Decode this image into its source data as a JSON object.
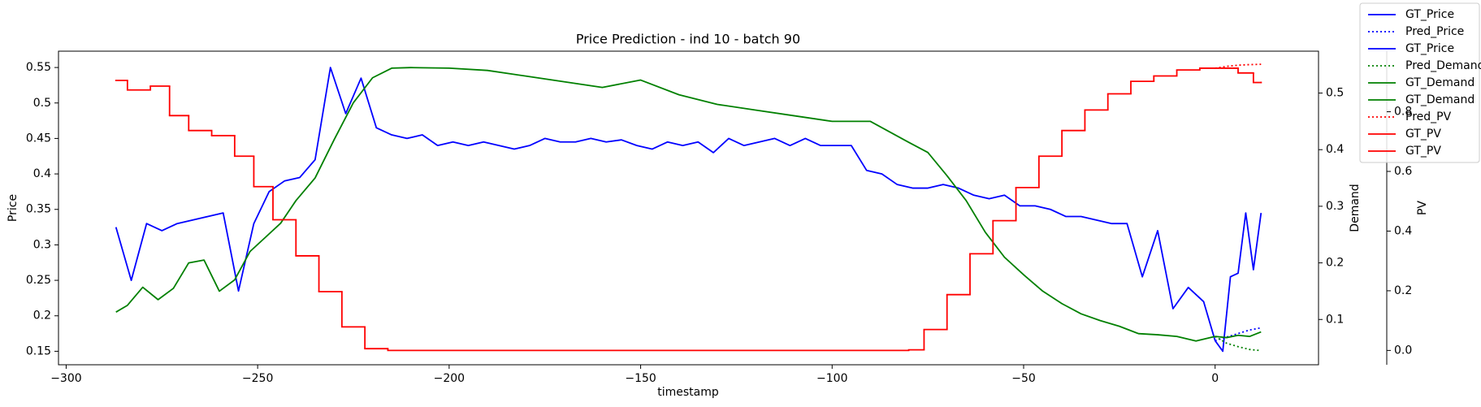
{
  "chart_data": {
    "type": "line",
    "title": "Price Prediction - ind 10 - batch 90",
    "xlabel": "timestamp",
    "ylabel": "Price",
    "y2label": "Demand",
    "y3label": "PV",
    "ylabel_color": "#0000ff",
    "y2label_color": "#008000",
    "y3label_color": "#ff0000",
    "xlim": [
      -302,
      27
    ],
    "xticks": [
      {
        "value": -300,
        "label": "−300"
      },
      {
        "value": -250,
        "label": "−250"
      },
      {
        "value": -200,
        "label": "−200"
      },
      {
        "value": -150,
        "label": "−150"
      },
      {
        "value": -100,
        "label": "−100"
      },
      {
        "value": -50,
        "label": "−50"
      },
      0
    ],
    "ylim": [
      0.131,
      0.573
    ],
    "yticks": [
      0.15,
      0.2,
      0.25,
      0.3,
      0.35,
      0.4,
      0.45,
      0.5,
      0.55
    ],
    "y2lim": [
      0.02,
      0.574
    ],
    "y2ticks": [
      0.1,
      0.2,
      0.3,
      0.4,
      0.5
    ],
    "y3lim": [
      -0.048,
      1.003
    ],
    "y3ticks": [
      {
        "value": 0,
        "label": "0.0"
      },
      0.2,
      0.4,
      0.6,
      0.8
    ],
    "legend": "upper right outside",
    "series": [
      {
        "name": "GT_Price",
        "color": "#0000ff",
        "style": "solid",
        "axis": "y",
        "x": [
          -287,
          -283,
          -279,
          -275,
          -271,
          -267,
          -263,
          -259,
          -255,
          -251,
          -247,
          -243,
          -239,
          -235,
          -231,
          -227,
          -223,
          -219,
          -215,
          -211,
          -207,
          -203,
          -199,
          -195,
          -191,
          -187,
          -183,
          -179,
          -175,
          -171,
          -167,
          -163,
          -159,
          -155,
          -151,
          -147,
          -143,
          -139,
          -135,
          -131,
          -127,
          -123,
          -119,
          -115,
          -111,
          -107,
          -103,
          -99,
          -95,
          -91,
          -87,
          -83,
          -79,
          -75,
          -71,
          -67,
          -63,
          -59,
          -55,
          -51,
          -47,
          -43,
          -39,
          -35,
          -31,
          -27,
          -23,
          -19,
          -15,
          -11,
          -7,
          -3,
          0
        ],
        "values": [
          0.325,
          0.25,
          0.33,
          0.32,
          0.33,
          0.335,
          0.34,
          0.345,
          0.235,
          0.33,
          0.375,
          0.39,
          0.395,
          0.42,
          0.55,
          0.485,
          0.535,
          0.465,
          0.455,
          0.45,
          0.455,
          0.44,
          0.445,
          0.44,
          0.445,
          0.44,
          0.435,
          0.44,
          0.45,
          0.445,
          0.445,
          0.45,
          0.445,
          0.448,
          0.44,
          0.435,
          0.445,
          0.44,
          0.445,
          0.43,
          0.45,
          0.44,
          0.445,
          0.45,
          0.44,
          0.45,
          0.44,
          0.44,
          0.44,
          0.405,
          0.4,
          0.385,
          0.38,
          0.38,
          0.385,
          0.38,
          0.37,
          0.365,
          0.37,
          0.355,
          0.355,
          0.35,
          0.34,
          0.34,
          0.335,
          0.33,
          0.33,
          0.255,
          0.32,
          0.21,
          0.24,
          0.22,
          0.165
        ]
      },
      {
        "name": "Pred_Price",
        "color": "#0000ff",
        "style": "dotted",
        "axis": "y",
        "x": [
          0,
          3,
          6,
          9,
          12
        ],
        "values": [
          0.165,
          0.17,
          0.175,
          0.18,
          0.183
        ]
      },
      {
        "name": "GT_Price",
        "color": "#0000ff",
        "style": "solid",
        "axis": "y",
        "x": [
          0,
          2,
          4,
          6,
          8,
          10,
          12
        ],
        "values": [
          0.165,
          0.15,
          0.255,
          0.26,
          0.345,
          0.265,
          0.345
        ]
      },
      {
        "name": "Pred_Demand",
        "color": "#008000",
        "style": "dotted",
        "axis": "y2",
        "x": [
          0,
          3,
          6,
          9,
          12
        ],
        "values": [
          0.07,
          0.058,
          0.052,
          0.047,
          0.045
        ]
      },
      {
        "name": "GT_Demand",
        "color": "#008000",
        "style": "solid",
        "axis": "y2",
        "x": [
          -287,
          -284,
          -280,
          -276,
          -272,
          -268,
          -264,
          -260,
          -256,
          -252,
          -248,
          -244,
          -240,
          -235,
          -230,
          -225,
          -220,
          -215,
          -210,
          -200,
          -190,
          -180,
          -170,
          -160,
          -150,
          -140,
          -130,
          -120,
          -110,
          -100,
          -90,
          -80,
          -75,
          -70,
          -65,
          -60,
          -55,
          -50,
          -45,
          -40,
          -35,
          -30,
          -25,
          -20,
          -15,
          -10,
          -5,
          0
        ],
        "values": [
          0.113,
          0.125,
          0.157,
          0.135,
          0.155,
          0.2,
          0.205,
          0.15,
          0.17,
          0.22,
          0.245,
          0.27,
          0.31,
          0.35,
          0.418,
          0.483,
          0.527,
          0.544,
          0.545,
          0.544,
          0.54,
          0.53,
          0.52,
          0.51,
          0.523,
          0.497,
          0.48,
          0.47,
          0.46,
          0.45,
          0.45,
          0.413,
          0.395,
          0.354,
          0.31,
          0.254,
          0.21,
          0.179,
          0.15,
          0.128,
          0.11,
          0.098,
          0.088,
          0.075,
          0.073,
          0.07,
          0.062,
          0.07
        ]
      },
      {
        "name": "GT_Demand",
        "color": "#008000",
        "style": "solid",
        "axis": "y2",
        "x": [
          0,
          3,
          6,
          9,
          12
        ],
        "values": [
          0.07,
          0.068,
          0.072,
          0.07,
          0.078
        ]
      },
      {
        "name": "Pred_PV",
        "color": "#ff0000",
        "style": "dotted",
        "axis": "y3",
        "x": [
          0,
          3,
          6,
          9,
          12
        ],
        "values": [
          0.946,
          0.952,
          0.956,
          0.958,
          0.959
        ]
      },
      {
        "name": "GT_PV",
        "color": "#ff0000",
        "style": "solid",
        "axis": "y3",
        "step": "post",
        "x": [
          -287,
          -284,
          -278,
          -273,
          -268,
          -262,
          -256,
          -251,
          -246,
          -240,
          -234,
          -228,
          -222,
          -216,
          -80,
          -76,
          -70,
          -64,
          -58,
          -52,
          -46,
          -40,
          -34,
          -28,
          -22,
          -16,
          -10,
          -4,
          0
        ],
        "values": [
          0.905,
          0.873,
          0.886,
          0.787,
          0.737,
          0.72,
          0.651,
          0.549,
          0.438,
          0.317,
          0.197,
          0.079,
          0.006,
          0,
          0.002,
          0.07,
          0.187,
          0.324,
          0.435,
          0.546,
          0.651,
          0.737,
          0.806,
          0.86,
          0.902,
          0.92,
          0.94,
          0.946,
          0.946
        ]
      },
      {
        "name": "GT_PV",
        "color": "#ff0000",
        "style": "solid",
        "axis": "y3",
        "step": "post",
        "x": [
          0,
          6,
          10,
          12
        ],
        "values": [
          0.946,
          0.93,
          0.898,
          0.898
        ]
      }
    ]
  }
}
